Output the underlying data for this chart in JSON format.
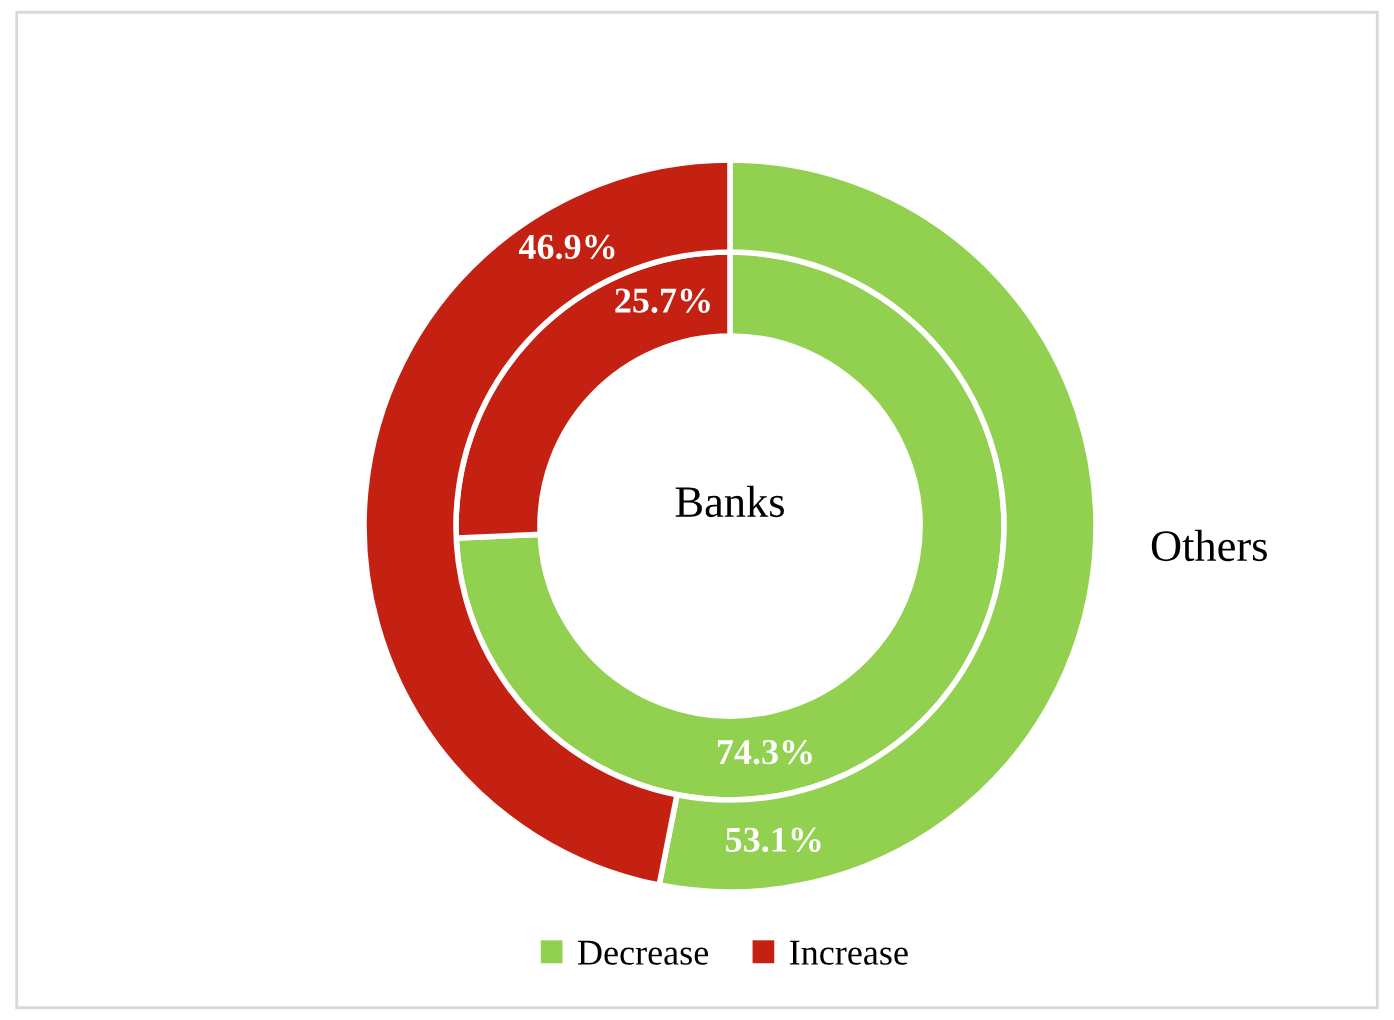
{
  "chart_data": {
    "type": "donut",
    "categories": [
      "Decrease",
      "Increase"
    ],
    "colors": [
      "#92d050",
      "#c42112"
    ],
    "series": [
      {
        "name": "Banks",
        "values": [
          74.3,
          25.7
        ],
        "value_labels": [
          "74.3%",
          "25.7%"
        ]
      },
      {
        "name": "Others",
        "values": [
          53.1,
          46.9
        ],
        "value_labels": [
          "53.1%",
          "46.9%"
        ]
      }
    ],
    "legend": "bottom"
  }
}
